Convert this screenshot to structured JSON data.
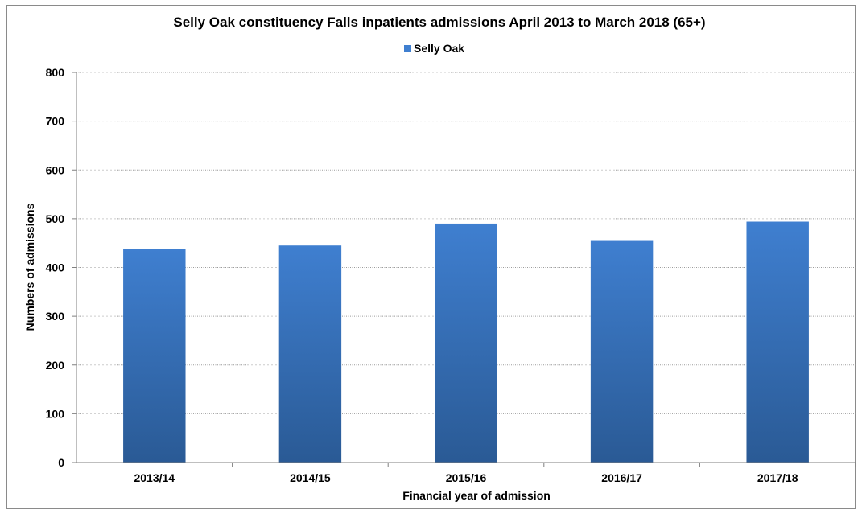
{
  "chart_data": {
    "type": "bar",
    "title": "Selly Oak constituency Falls inpatients admissions April 2013 to March 2018 (65+)",
    "xlabel": "Financial year of admission",
    "ylabel": "Numbers of admissions",
    "categories": [
      "2013/14",
      "2014/15",
      "2015/16",
      "2016/17",
      "2017/18"
    ],
    "series": [
      {
        "name": "Selly Oak",
        "values": [
          438,
          445,
          490,
          456,
          494
        ]
      }
    ],
    "ylim": [
      0,
      800
    ],
    "yticks": [
      0,
      100,
      200,
      300,
      400,
      500,
      600,
      700,
      800
    ],
    "ytick_labels": [
      "0",
      "100",
      "200",
      "300",
      "400",
      "500",
      "600",
      "700",
      "800"
    ],
    "grid": true,
    "legend_position": "top",
    "colors": {
      "bar_top": "#3f7fd0",
      "bar_bottom": "#2a5a95"
    }
  }
}
